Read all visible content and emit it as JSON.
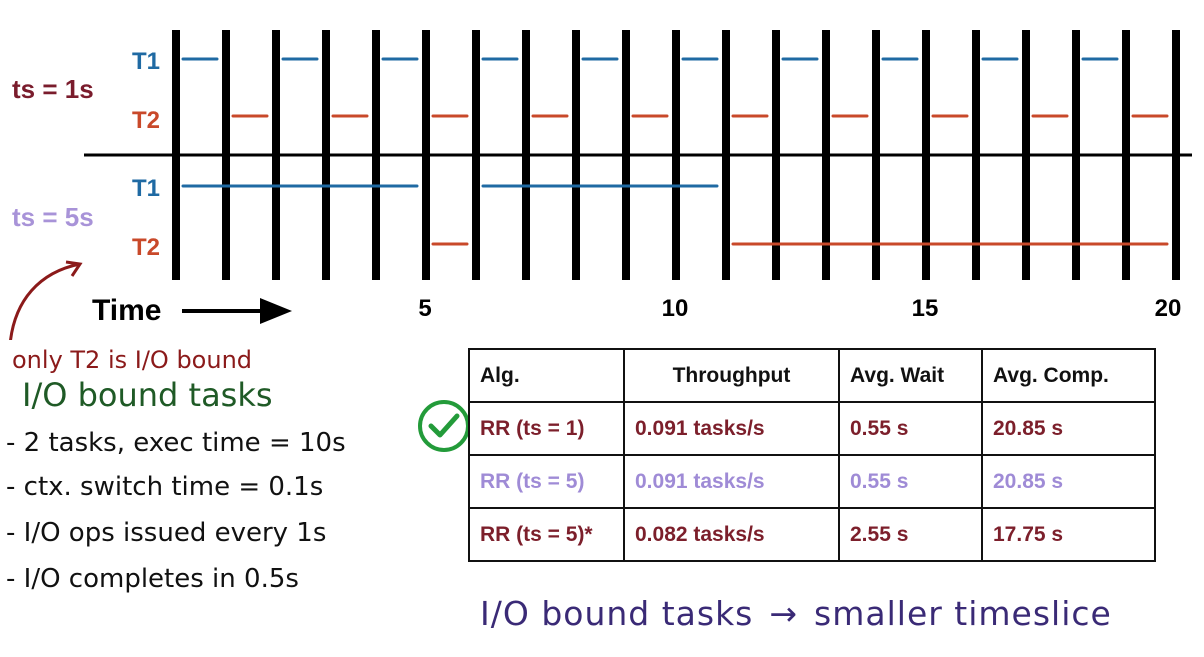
{
  "diagram": {
    "colors": {
      "t1": "#1f6aa3",
      "t2": "#c9492a",
      "ts1": "#7a1c2c",
      "ts5": "#a893d8",
      "bars": "#000000"
    },
    "rows": {
      "ts1": {
        "label": "ts = 1s",
        "t1": "T1",
        "t2": "T2"
      },
      "ts5": {
        "label": "ts = 5s",
        "t1": "T1",
        "t2": "T2"
      }
    },
    "time_label": "Time",
    "ticks": [
      "5",
      "10",
      "15",
      "20"
    ],
    "schedule": {
      "ts1_t1": [
        [
          0,
          1
        ],
        [
          2,
          3
        ],
        [
          4,
          5
        ],
        [
          6,
          7
        ],
        [
          8,
          9
        ],
        [
          10,
          11
        ],
        [
          12,
          13
        ],
        [
          14,
          15
        ],
        [
          16,
          17
        ],
        [
          18,
          19
        ]
      ],
      "ts1_t2": [
        [
          1,
          2
        ],
        [
          3,
          4
        ],
        [
          5,
          6
        ],
        [
          7,
          8
        ],
        [
          9,
          10
        ],
        [
          11,
          12
        ],
        [
          13,
          14
        ],
        [
          15,
          16
        ],
        [
          17,
          18
        ],
        [
          19,
          20
        ]
      ],
      "ts5_t1": [
        [
          0,
          5
        ],
        [
          6,
          11
        ]
      ],
      "ts5_t2": [
        [
          5,
          6
        ],
        [
          11,
          20
        ]
      ]
    }
  },
  "table": {
    "headers": [
      "Alg.",
      "Throughput",
      "Avg. Wait",
      "Avg. Comp."
    ],
    "rows": [
      {
        "alg": "RR (ts = 1)",
        "throughput": "0.091 tasks/s",
        "wait": "0.55 s",
        "comp": "20.85 s"
      },
      {
        "alg": "RR (ts = 5)",
        "throughput": "0.091 tasks/s",
        "wait": "0.55 s",
        "comp": "20.85 s"
      },
      {
        "alg": "RR (ts = 5)*",
        "throughput": "0.082 tasks/s",
        "wait": "2.55 s",
        "comp": "17.75 s"
      }
    ]
  },
  "notes": {
    "io_note": "only T2 is I/O bound",
    "title": "I/O bound tasks",
    "items": [
      "- 2 tasks, exec time = 10s",
      "- ctx. switch time = 0.1s",
      "- I/O ops issued every 1s",
      "- I/O completes in 0.5s"
    ]
  },
  "bottom": {
    "left": "I/O bound tasks",
    "arrow": "→",
    "right": "smaller timeslice"
  }
}
